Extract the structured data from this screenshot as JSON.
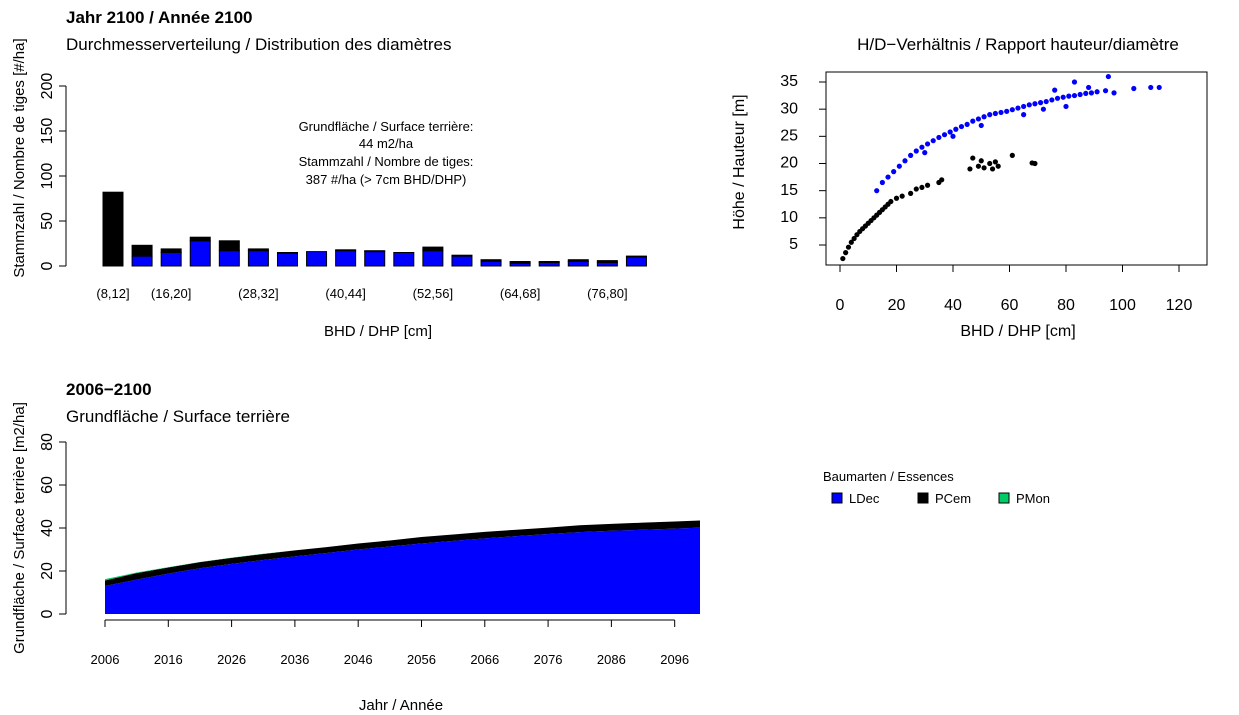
{
  "colors": {
    "LDec": "#0000FF",
    "PCem": "#000000",
    "PMon": "#00CC66",
    "axis": "#000000"
  },
  "legend": {
    "title": "Baumarten / Essences",
    "items": [
      {
        "label": "LDec",
        "color": "#0000FF"
      },
      {
        "label": "PCem",
        "color": "#000000"
      },
      {
        "label": "PMon",
        "color": "#00CC66"
      }
    ]
  },
  "chart_data": [
    {
      "type": "bar",
      "title": "Jahr 2100 / Année 2100",
      "subtitle": "Durchmesserverteilung / Distribution des diamètres",
      "xlabel": "BHD / DHP [cm]",
      "ylabel": "Stammzahl / Nombre de tiges [#/ha]",
      "ylim": [
        0,
        200
      ],
      "yticks": [
        0,
        50,
        100,
        150,
        200
      ],
      "stacked": true,
      "categories": [
        "(8,12]",
        "(12,16]",
        "(16,20]",
        "(20,24]",
        "(24,28]",
        "(28,32]",
        "(32,36]",
        "(36,40]",
        "(40,44]",
        "(44,48]",
        "(48,52]",
        "(52,56]",
        "(56,60]",
        "(60,64]",
        "(64,68]",
        "(68,72]",
        "(72,76]",
        "(76,80]",
        "(80,84]"
      ],
      "tick_labels": [
        "(8,12]",
        "(16,20]",
        "(28,32]",
        "(40,44]",
        "(52,56]",
        "(64,68]",
        "(76,80]"
      ],
      "series": [
        {
          "name": "LDec",
          "values": [
            0,
            11,
            15,
            28,
            17,
            17,
            14,
            16,
            17,
            16,
            15,
            17,
            11,
            5,
            3,
            4,
            5,
            4,
            10
          ]
        },
        {
          "name": "PCem",
          "values": [
            82,
            12,
            4,
            4,
            11,
            2,
            1,
            0,
            1,
            1,
            0,
            4,
            1,
            2,
            2,
            1,
            2,
            2,
            1
          ]
        },
        {
          "name": "PMon",
          "values": [
            0,
            0,
            0,
            0,
            0,
            0,
            0,
            0,
            0,
            0,
            0,
            0,
            0,
            0,
            0,
            0,
            0,
            0,
            0
          ]
        }
      ],
      "annotation": [
        "Grundfläche / Surface terrière:",
        "44 m2/ha",
        "Stammzahl / Nombre de tiges:",
        "387 #/ha (> 7cm BHD/DHP)"
      ]
    },
    {
      "type": "scatter",
      "title": "H/D−Verhältnis / Rapport hauteur/diamètre",
      "xlabel": "BHD / DHP [cm]",
      "ylabel": "Höhe / Hauteur [m]",
      "xlim": [
        0,
        120
      ],
      "ylim": [
        2.3,
        36.5
      ],
      "xticks": [
        0,
        20,
        40,
        60,
        80,
        100,
        120
      ],
      "yticks": [
        5,
        10,
        15,
        20,
        25,
        30,
        35
      ],
      "series": [
        {
          "name": "PCem",
          "points": [
            [
              1,
              2.5
            ],
            [
              2,
              3.6
            ],
            [
              3,
              4.6
            ],
            [
              4,
              5.5
            ],
            [
              5,
              6.2
            ],
            [
              6,
              6.9
            ],
            [
              7,
              7.5
            ],
            [
              8,
              8.0
            ],
            [
              9,
              8.5
            ],
            [
              10,
              9.0
            ],
            [
              11,
              9.5
            ],
            [
              12,
              10.0
            ],
            [
              13,
              10.5
            ],
            [
              14,
              11.0
            ],
            [
              15,
              11.5
            ],
            [
              16,
              12.0
            ],
            [
              17,
              12.5
            ],
            [
              18,
              13.0
            ],
            [
              20,
              13.6
            ],
            [
              22,
              14.0
            ],
            [
              25,
              14.5
            ],
            [
              27,
              15.3
            ],
            [
              29,
              15.6
            ],
            [
              31,
              16.0
            ],
            [
              35,
              16.5
            ],
            [
              36,
              17.0
            ],
            [
              46,
              19.0
            ],
            [
              47,
              21.0
            ],
            [
              49,
              19.5
            ],
            [
              50,
              20.5
            ],
            [
              51,
              19.2
            ],
            [
              53,
              20.0
            ],
            [
              54,
              19.0
            ],
            [
              55,
              20.3
            ],
            [
              56,
              19.5
            ],
            [
              61,
              21.5
            ],
            [
              68,
              20.1
            ],
            [
              69,
              20.0
            ]
          ]
        },
        {
          "name": "LDec",
          "points": [
            [
              13,
              15.0
            ],
            [
              15,
              16.5
            ],
            [
              17,
              17.5
            ],
            [
              19,
              18.5
            ],
            [
              21,
              19.5
            ],
            [
              23,
              20.5
            ],
            [
              25,
              21.5
            ],
            [
              27,
              22.3
            ],
            [
              29,
              23.0
            ],
            [
              31,
              23.6
            ],
            [
              33,
              24.2
            ],
            [
              35,
              24.8
            ],
            [
              37,
              25.3
            ],
            [
              39,
              25.8
            ],
            [
              41,
              26.3
            ],
            [
              43,
              26.8
            ],
            [
              45,
              27.2
            ],
            [
              47,
              27.8
            ],
            [
              49,
              28.2
            ],
            [
              51,
              28.6
            ],
            [
              53,
              29.0
            ],
            [
              55,
              29.2
            ],
            [
              57,
              29.4
            ],
            [
              59,
              29.6
            ],
            [
              61,
              29.9
            ],
            [
              63,
              30.2
            ],
            [
              65,
              30.5
            ],
            [
              67,
              30.8
            ],
            [
              69,
              31.0
            ],
            [
              71,
              31.2
            ],
            [
              73,
              31.4
            ],
            [
              75,
              31.7
            ],
            [
              77,
              32.0
            ],
            [
              79,
              32.2
            ],
            [
              81,
              32.4
            ],
            [
              83,
              32.5
            ],
            [
              85,
              32.7
            ],
            [
              87,
              32.9
            ],
            [
              89,
              33.0
            ],
            [
              91,
              33.2
            ],
            [
              94,
              33.4
            ],
            [
              97,
              33.0
            ],
            [
              104,
              33.8
            ],
            [
              110,
              34.0
            ],
            [
              113,
              34.0
            ],
            [
              83,
              35.0
            ],
            [
              95,
              36.0
            ],
            [
              88,
              34.0
            ],
            [
              76,
              33.5
            ],
            [
              80,
              30.5
            ],
            [
              72,
              30.0
            ],
            [
              65,
              29.0
            ],
            [
              50,
              27.0
            ],
            [
              40,
              25.0
            ],
            [
              30,
              22.0
            ]
          ]
        }
      ]
    },
    {
      "type": "area",
      "title": "2006−2100",
      "subtitle": "Grundfläche / Surface terrière",
      "xlabel": "Jahr / Année",
      "ylabel": "Grundfläche / Surface terrière [m2/ha]",
      "ylim": [
        0,
        80
      ],
      "yticks": [
        0,
        20,
        40,
        60,
        80
      ],
      "xticks": [
        2006,
        2016,
        2026,
        2036,
        2046,
        2056,
        2066,
        2076,
        2086,
        2096
      ],
      "stacked": true,
      "x": [
        2006,
        2011,
        2016,
        2021,
        2026,
        2031,
        2036,
        2041,
        2046,
        2051,
        2056,
        2061,
        2066,
        2071,
        2076,
        2081,
        2086,
        2091,
        2096,
        2100
      ],
      "series": [
        {
          "name": "LDec",
          "values": [
            13.0,
            16.0,
            18.8,
            21.3,
            23.3,
            25.1,
            26.8,
            28.4,
            30.0,
            31.4,
            32.8,
            34.0,
            35.2,
            36.2,
            37.2,
            38.1,
            38.7,
            39.2,
            39.7,
            40.2
          ]
        },
        {
          "name": "PCem",
          "values": [
            2.6,
            3.0,
            2.8,
            2.8,
            2.8,
            2.8,
            2.8,
            2.7,
            2.8,
            2.8,
            3.0,
            3.0,
            3.0,
            3.0,
            3.0,
            3.2,
            3.2,
            3.3,
            3.3,
            3.3
          ]
        },
        {
          "name": "PMon",
          "values": [
            0.6,
            0.3,
            0.2,
            0.1,
            0.1,
            0.1,
            0,
            0,
            0,
            0,
            0,
            0,
            0,
            0,
            0,
            0,
            0,
            0,
            0,
            0
          ]
        }
      ]
    }
  ]
}
